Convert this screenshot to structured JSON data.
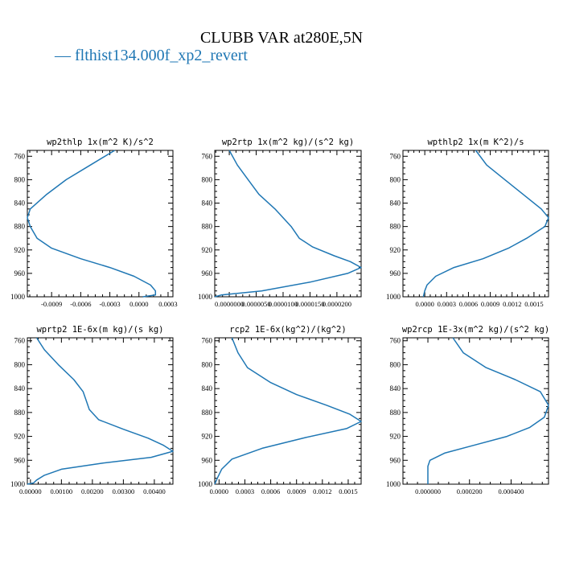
{
  "title": "CLUBB VAR at280E,5N",
  "legend": {
    "entries": [
      {
        "label": "— flthist134.000f_xp2_revert",
        "color": "#1f77b4"
      }
    ]
  },
  "chart_data": [
    {
      "type": "line",
      "title": "wp2thlp  1x(m^2 K)/s^2",
      "xlim": [
        -0.00115,
        0.00035
      ],
      "ylim": [
        1000,
        750
      ],
      "yticks": [
        760,
        800,
        840,
        880,
        920,
        960,
        1000
      ],
      "xticks": [
        -0.0009,
        -0.0006,
        -0.0003,
        0.0,
        0.0003
      ],
      "xticklabels": [
        "-0.0009",
        "-0.0006",
        "-0.0003",
        "0.0000",
        "0.0003"
      ],
      "series": [
        {
          "color": "#1f77b4",
          "x": [
            -0.00025,
            -0.0005,
            -0.00075,
            -0.00095,
            -0.00112,
            -0.00115,
            -0.00112,
            -0.00105,
            -0.0009,
            -0.0006,
            -0.0003,
            -5e-05,
            0.00012,
            0.00017,
            0.00017,
            4e-05
          ],
          "y": [
            750,
            775,
            800,
            825,
            850,
            865,
            880,
            900,
            917,
            935,
            950,
            965,
            980,
            990,
            997,
            1000
          ]
        }
      ]
    },
    {
      "type": "line",
      "title": "wp2rtp  1x(m^2 kg)/(s^2 kg)",
      "xlim": [
        -2.7e-06,
        2.45e-05
      ],
      "ylim": [
        1000,
        750
      ],
      "yticks": [
        760,
        800,
        840,
        880,
        920,
        960,
        1000
      ],
      "xticks": [
        0.0,
        5e-06,
        1e-05,
        1.5e-05,
        2e-05
      ],
      "xticklabels": [
        "0.0000000",
        "0.0000050",
        "0.0000100",
        "0.0000150",
        "0.0000200"
      ],
      "series": [
        {
          "color": "#1f77b4",
          "x": [
            0.0,
            1.5e-06,
            3.5e-06,
            5.5e-06,
            8.5e-06,
            1.15e-05,
            1.3e-05,
            1.55e-05,
            1.95e-05,
            2.25e-05,
            2.45e-05,
            2.2e-05,
            1.5e-05,
            6e-06,
            -1.5e-06,
            -2.7e-06
          ],
          "y": [
            750,
            775,
            800,
            825,
            850,
            880,
            900,
            915,
            930,
            940,
            950,
            960,
            975,
            990,
            997,
            1000
          ]
        }
      ]
    },
    {
      "type": "line",
      "title": "wpthlp2  1x(m K^2)/s",
      "xlim": [
        -0.0003,
        0.0017
      ],
      "ylim": [
        1000,
        750
      ],
      "yticks": [
        760,
        800,
        840,
        880,
        920,
        960,
        1000
      ],
      "xticks": [
        0.0,
        0.0003,
        0.0006,
        0.0009,
        0.0012,
        0.0015
      ],
      "xticklabels": [
        "0.0000",
        "0.0003",
        "0.0006",
        "0.0009",
        "0.0012",
        "0.0015"
      ],
      "series": [
        {
          "color": "#1f77b4",
          "x": [
            0.0007,
            0.00085,
            0.0011,
            0.00135,
            0.0016,
            0.0017,
            0.00165,
            0.0014,
            0.00115,
            0.0008,
            0.0004,
            0.00015,
            3e-05,
            0.0,
            -2e-05
          ],
          "y": [
            750,
            775,
            800,
            825,
            850,
            865,
            880,
            900,
            917,
            935,
            950,
            965,
            980,
            990,
            1000
          ]
        }
      ]
    },
    {
      "type": "line",
      "title": "wprtp2  1E-6x(m kg)/(s kg)",
      "xlim": [
        -0.0001,
        0.0046
      ],
      "ylim": [
        1000,
        755
      ],
      "yticks": [
        760,
        800,
        840,
        880,
        920,
        960,
        1000
      ],
      "xticks": [
        0.0,
        0.001,
        0.002,
        0.003,
        0.004
      ],
      "xticklabels": [
        "0.00000",
        "0.00100",
        "0.00200",
        "0.00300",
        "0.00400"
      ],
      "series": [
        {
          "color": "#1f77b4",
          "x": [
            0.0002,
            0.00045,
            0.0009,
            0.0014,
            0.0017,
            0.0018,
            0.0019,
            0.0022,
            0.003,
            0.0038,
            0.0043,
            0.0046,
            0.0039,
            0.0023,
            0.001,
            0.00045,
            0.0002,
            0.0001,
            -0.0001
          ],
          "y": [
            755,
            775,
            800,
            825,
            845,
            860,
            875,
            892,
            908,
            923,
            935,
            945,
            955,
            965,
            975,
            985,
            993,
            998,
            1000
          ]
        }
      ]
    },
    {
      "type": "line",
      "title": "rcp2  1E-6x(kg^2)/(kg^2)",
      "xlim": [
        -5e-05,
        0.00165
      ],
      "ylim": [
        1000,
        755
      ],
      "yticks": [
        760,
        800,
        840,
        880,
        920,
        960,
        1000
      ],
      "xticks": [
        0.0,
        0.0003,
        0.0006,
        0.0009,
        0.0012,
        0.0015
      ],
      "xticklabels": [
        "0.0000",
        "0.0003",
        "0.0006",
        "0.0009",
        "0.0012",
        "0.0015"
      ],
      "series": [
        {
          "color": "#1f77b4",
          "x": [
            0.00015,
            0.00022,
            0.00033,
            0.0006,
            0.0009,
            0.00125,
            0.00152,
            0.00165,
            0.00148,
            0.001,
            0.0005,
            0.00015,
            3e-05,
            -2e-05,
            -5e-05
          ],
          "y": [
            755,
            780,
            805,
            830,
            850,
            868,
            883,
            895,
            907,
            922,
            940,
            958,
            975,
            990,
            1000
          ]
        }
      ]
    },
    {
      "type": "line",
      "title": "wp2rcp  1E-3x(m^2 kg)/(s^2 kg)",
      "xlim": [
        -0.00012,
        0.00058
      ],
      "ylim": [
        1000,
        755
      ],
      "yticks": [
        760,
        800,
        840,
        880,
        920,
        960,
        1000
      ],
      "xticks": [
        0.0,
        0.0002,
        0.0004
      ],
      "xticklabels": [
        "0.000000",
        "0.000200",
        "0.000400"
      ],
      "series": [
        {
          "color": "#1f77b4",
          "x": [
            0.00012,
            0.00017,
            0.00028,
            0.00042,
            0.00054,
            0.00058,
            0.00056,
            0.00049,
            0.00038,
            0.00022,
            8e-05,
            1e-05,
            0.0,
            0.0,
            0.0
          ],
          "y": [
            755,
            780,
            805,
            825,
            845,
            868,
            888,
            905,
            920,
            935,
            948,
            960,
            970,
            985,
            1000
          ]
        }
      ]
    }
  ]
}
